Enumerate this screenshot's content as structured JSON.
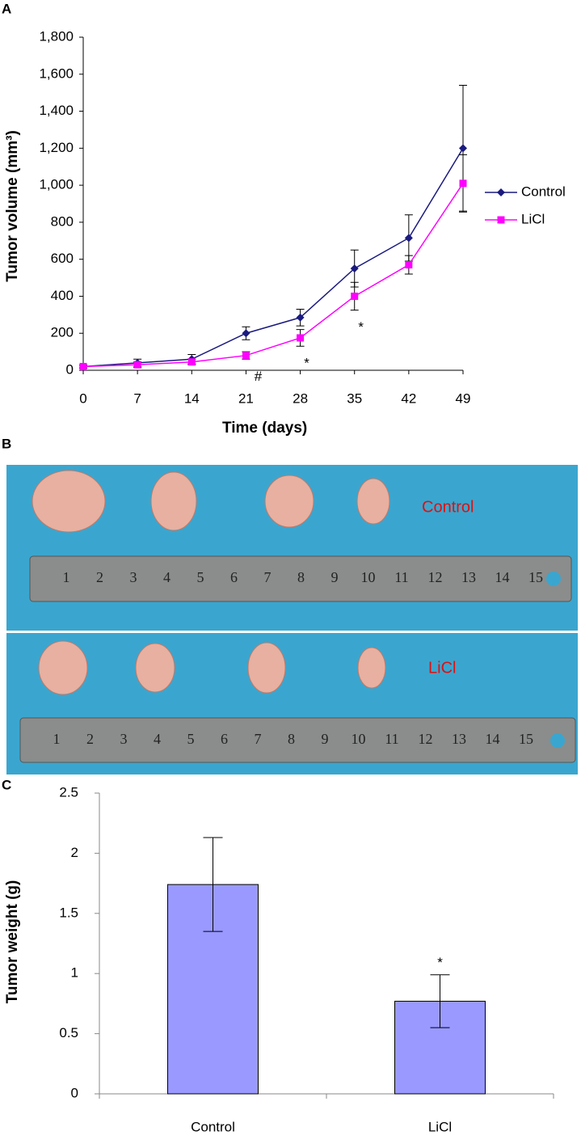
{
  "chart_data": [
    {
      "type": "line",
      "panel": "A",
      "y_label": "Tumor volume (mm³)",
      "x_label": "Time (days)",
      "x": [
        0,
        7,
        14,
        21,
        28,
        35,
        42,
        49
      ],
      "xlim": [
        0,
        49
      ],
      "xticks": [
        0,
        7,
        14,
        21,
        28,
        35,
        42,
        49
      ],
      "ylim": [
        0,
        1800
      ],
      "yticks": [
        0,
        200,
        400,
        600,
        800,
        {
          "value": 1000,
          "label": "1,000"
        },
        {
          "value": 1200,
          "label": "1,200"
        },
        {
          "value": 1400,
          "label": "1,400"
        },
        {
          "value": 1600,
          "label": "1,600"
        },
        {
          "value": 1800,
          "label": "1,800"
        }
      ],
      "legend": "right",
      "series": [
        {
          "name": "Control",
          "color": "#1a1a80",
          "marker": "diamond",
          "values": [
            20,
            40,
            60,
            200,
            285,
            550,
            715,
            1200
          ],
          "errors": [
            8,
            20,
            25,
            35,
            45,
            100,
            125,
            340
          ]
        },
        {
          "name": "LiCl",
          "color": "#ff00ff",
          "marker": "square",
          "values": [
            20,
            30,
            45,
            80,
            175,
            400,
            570,
            1010
          ],
          "errors": [
            8,
            15,
            15,
            20,
            45,
            75,
            50,
            155
          ]
        }
      ],
      "annotations": [
        {
          "x": 21,
          "text": "#"
        },
        {
          "x": 28,
          "text": "*"
        },
        {
          "x": 35,
          "text": "*"
        }
      ]
    },
    {
      "type": "bar",
      "panel": "C",
      "y_label": "Tumor weight (g)",
      "categories": [
        "Control",
        "LiCl"
      ],
      "values": [
        1.74,
        0.77
      ],
      "errors": [
        0.39,
        0.22
      ],
      "color": "#9999ff",
      "ylim": [
        0,
        2.5
      ],
      "yticks": [
        0,
        0.5,
        1,
        1.5,
        2,
        2.5
      ],
      "annotations": [
        {
          "category": 1,
          "text": "*"
        }
      ]
    }
  ],
  "photo": {
    "panel": "B",
    "groups": [
      "Control",
      "LiCl"
    ],
    "ruler_labels": [
      1,
      2,
      3,
      4,
      5,
      6,
      7,
      8,
      9,
      10,
      11,
      12,
      13,
      14,
      15
    ]
  }
}
